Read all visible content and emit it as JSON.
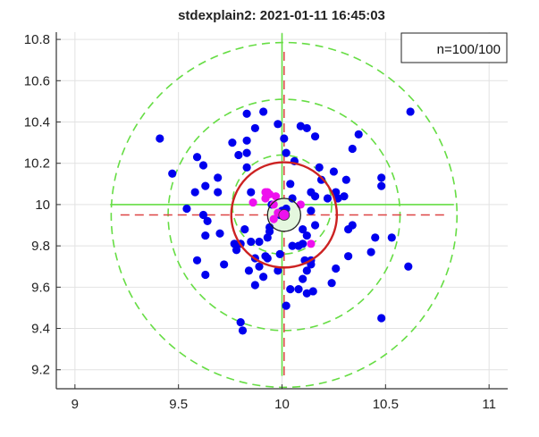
{
  "chart_data": {
    "type": "scatter",
    "title": "stdexplain2: 2021-01-11 16:45:03",
    "xlabel": "",
    "ylabel": "",
    "xlim": [
      8.91,
      11.09
    ],
    "ylim": [
      9.108,
      10.835
    ],
    "xticks": [
      9,
      9.5,
      10,
      10.5,
      11
    ],
    "xtick_labels": [
      "9",
      "9.5",
      "10",
      "10.5",
      "11"
    ],
    "yticks": [
      9.2,
      9.4,
      9.6,
      9.8,
      10,
      10.2,
      10.4,
      10.6,
      10.8
    ],
    "ytick_labels": [
      "9.2",
      "9.4",
      "9.6",
      "9.8",
      "10",
      "10.2",
      "10.4",
      "10.6",
      "10.8"
    ],
    "grid": true,
    "legend": {
      "text": "n=100/100",
      "placement": "top-right"
    },
    "colors": {
      "blue": "#0000ee",
      "magenta": "#ee11ee",
      "green": "#66dd44",
      "red_circle": "#cc2222",
      "red_dash": "#dd4444",
      "black_circle": "#222222",
      "black_fill": "#e4f7de"
    },
    "target": {
      "x": 10,
      "y": 10
    },
    "mean": {
      "x": 10.01,
      "y": 9.95
    },
    "mean_circle_radius": 0.08,
    "std_circle_radius": 0.255,
    "green_crosshair_half_length": 0.83,
    "red_crosshair_half_length": 0.79,
    "green_dashed_circles": [
      {
        "center": "target",
        "radius": 0.24
      },
      {
        "center": "mean",
        "radius": 0.56
      },
      {
        "center": "mean",
        "radius": 0.835
      }
    ],
    "series": [
      {
        "color": "blue",
        "points": [
          [
            9.41,
            10.32
          ],
          [
            9.47,
            10.15
          ],
          [
            9.59,
            10.23
          ],
          [
            9.62,
            10.19
          ],
          [
            9.69,
            10.13
          ],
          [
            9.63,
            10.09
          ],
          [
            9.58,
            10.06
          ],
          [
            9.69,
            10.06
          ],
          [
            9.76,
            10.3
          ],
          [
            9.79,
            10.24
          ],
          [
            9.83,
            10.25
          ],
          [
            9.83,
            10.31
          ],
          [
            9.83,
            10.44
          ],
          [
            9.87,
            10.37
          ],
          [
            9.91,
            10.45
          ],
          [
            9.98,
            10.39
          ],
          [
            9.83,
            10.18
          ],
          [
            9.85,
            10.06
          ],
          [
            10.01,
            10.32
          ],
          [
            10.02,
            10.25
          ],
          [
            9.54,
            9.98
          ],
          [
            9.62,
            9.95
          ],
          [
            10.62,
            10.45
          ],
          [
            10.09,
            10.38
          ],
          [
            10.12,
            10.37
          ],
          [
            10.16,
            10.33
          ],
          [
            10.37,
            10.34
          ],
          [
            10.34,
            10.27
          ],
          [
            10.06,
            10.21
          ],
          [
            10.18,
            10.18
          ],
          [
            10.25,
            10.16
          ],
          [
            10.19,
            10.12
          ],
          [
            10.31,
            10.12
          ],
          [
            10.48,
            10.13
          ],
          [
            10.48,
            10.09
          ],
          [
            10.04,
            10.1
          ],
          [
            10.14,
            10.06
          ],
          [
            10.16,
            10.04
          ],
          [
            10.22,
            10.03
          ],
          [
            10.26,
            10.06
          ],
          [
            10.27,
            10.03
          ],
          [
            10.3,
            10.04
          ],
          [
            10.05,
            10.03
          ],
          [
            10.14,
            9.97
          ],
          [
            9.64,
            9.92
          ],
          [
            9.63,
            9.85
          ],
          [
            9.7,
            9.86
          ],
          [
            9.82,
            9.88
          ],
          [
            9.94,
            9.89
          ],
          [
            9.94,
            9.87
          ],
          [
            9.93,
            9.84
          ],
          [
            9.77,
            9.81
          ],
          [
            9.8,
            9.81
          ],
          [
            9.78,
            9.78
          ],
          [
            9.85,
            9.82
          ],
          [
            9.89,
            9.82
          ],
          [
            9.99,
            9.76
          ],
          [
            9.93,
            9.74
          ],
          [
            9.87,
            9.74
          ],
          [
            9.59,
            9.73
          ],
          [
            9.72,
            9.71
          ],
          [
            9.84,
            9.68
          ],
          [
            9.89,
            9.7
          ],
          [
            9.98,
            9.68
          ],
          [
            9.91,
            9.65
          ],
          [
            9.63,
            9.66
          ],
          [
            9.87,
            9.61
          ],
          [
            9.8,
            9.43
          ],
          [
            9.81,
            9.39
          ],
          [
            10.02,
            9.51
          ],
          [
            10.16,
            9.9
          ],
          [
            10.1,
            9.88
          ],
          [
            10.12,
            9.85
          ],
          [
            10.05,
            9.8
          ],
          [
            10.08,
            9.8
          ],
          [
            10.1,
            9.81
          ],
          [
            10.14,
            9.73
          ],
          [
            10.14,
            9.71
          ],
          [
            10.12,
            9.68
          ],
          [
            10.1,
            9.64
          ],
          [
            10.04,
            9.59
          ],
          [
            10.08,
            9.59
          ],
          [
            10.12,
            9.57
          ],
          [
            10.15,
            9.58
          ],
          [
            10.26,
            9.69
          ],
          [
            10.24,
            9.62
          ],
          [
            10.32,
            9.75
          ],
          [
            10.32,
            9.88
          ],
          [
            10.34,
            9.9
          ],
          [
            10.45,
            9.84
          ],
          [
            10.53,
            9.84
          ],
          [
            10.43,
            9.77
          ],
          [
            10.61,
            9.7
          ],
          [
            10.48,
            9.45
          ],
          [
            9.95,
            10.0
          ],
          [
            10.0,
            9.97
          ],
          [
            9.92,
            9.75
          ],
          [
            10.11,
            9.73
          ],
          [
            9.99,
            9.95
          ],
          [
            10.02,
            9.98
          ]
        ]
      },
      {
        "color": "magenta",
        "points": [
          [
            9.86,
            10.01
          ],
          [
            9.93,
            10.06
          ],
          [
            9.97,
            10.04
          ],
          [
            9.92,
            10.03
          ],
          [
            9.96,
            10.0
          ],
          [
            9.98,
            9.96
          ],
          [
            9.96,
            9.93
          ],
          [
            10.01,
            9.95
          ],
          [
            10.09,
            10.0
          ],
          [
            10.14,
            9.81
          ],
          [
            9.92,
            10.06
          ],
          [
            9.94,
            10.05
          ]
        ]
      }
    ]
  }
}
